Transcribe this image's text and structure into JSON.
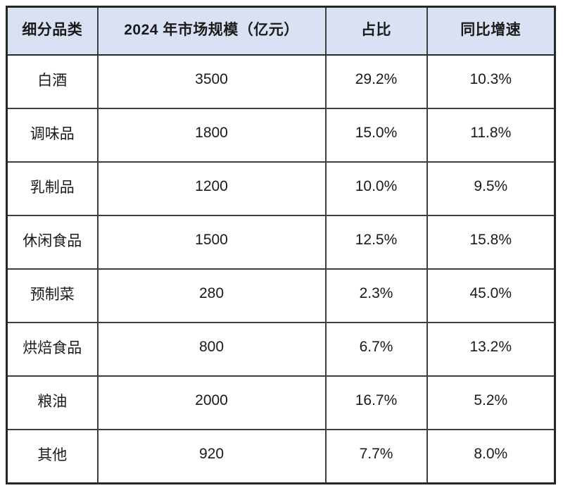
{
  "chart_data": {
    "type": "table",
    "title": "",
    "columns": [
      "细分品类",
      "2024 年市场规模（亿元）",
      "占比",
      "同比增速"
    ],
    "rows": [
      [
        "白酒",
        "3500",
        "29.2%",
        "10.3%"
      ],
      [
        "调味品",
        "1800",
        "15.0%",
        "11.8%"
      ],
      [
        "乳制品",
        "1200",
        "10.0%",
        "9.5%"
      ],
      [
        "休闲食品",
        "1500",
        "12.5%",
        "15.8%"
      ],
      [
        "预制菜",
        "280",
        "2.3%",
        "45.0%"
      ],
      [
        "烘焙食品",
        "800",
        "6.7%",
        "13.2%"
      ],
      [
        "粮油",
        "2000",
        "16.7%",
        "5.2%"
      ],
      [
        "其他",
        "920",
        "7.7%",
        "8.0%"
      ]
    ],
    "layout": {
      "header_background": "#D9E2F3",
      "grid_border_color": "#3f3f3f",
      "outer_border_color": "#262626",
      "text_color": "#1a1a1a",
      "grid": "on"
    }
  }
}
